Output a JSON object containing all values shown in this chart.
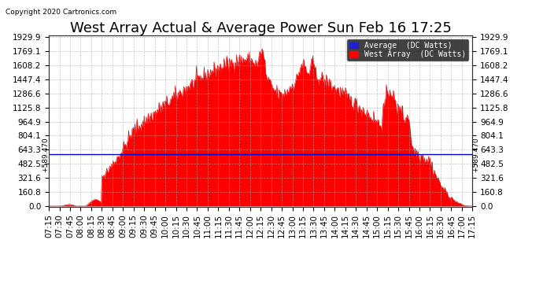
{
  "title": "West Array Actual & Average Power Sun Feb 16 17:25",
  "copyright": "Copyright 2020 Cartronics.com",
  "legend_avg": "Average  (DC Watts)",
  "legend_west": "West Array  (DC Watts)",
  "avg_value": 589.47,
  "y_ticks": [
    0.0,
    160.8,
    321.6,
    482.5,
    643.3,
    804.1,
    964.9,
    1125.8,
    1286.6,
    1447.4,
    1608.2,
    1769.1,
    1929.9
  ],
  "ymax": 1929.9,
  "ymin": 0.0,
  "background_color": "#ffffff",
  "plot_bg_color": "#ffffff",
  "grid_color": "#aaaaaa",
  "fill_color": "#ff0000",
  "line_color": "#dd0000",
  "avg_line_color": "#0000cc",
  "title_fontsize": 13,
  "tick_fontsize": 7.5,
  "x_tick_labels": [
    "07:15",
    "07:30",
    "07:45",
    "08:00",
    "08:15",
    "08:30",
    "08:45",
    "09:00",
    "09:15",
    "09:30",
    "09:45",
    "10:00",
    "10:15",
    "10:30",
    "10:45",
    "11:00",
    "11:15",
    "11:30",
    "11:45",
    "12:00",
    "12:15",
    "12:30",
    "12:45",
    "13:00",
    "13:15",
    "13:30",
    "13:45",
    "14:00",
    "14:15",
    "14:30",
    "14:45",
    "15:00",
    "15:15",
    "15:30",
    "15:45",
    "16:00",
    "16:15",
    "16:30",
    "16:45",
    "17:00",
    "17:15"
  ]
}
